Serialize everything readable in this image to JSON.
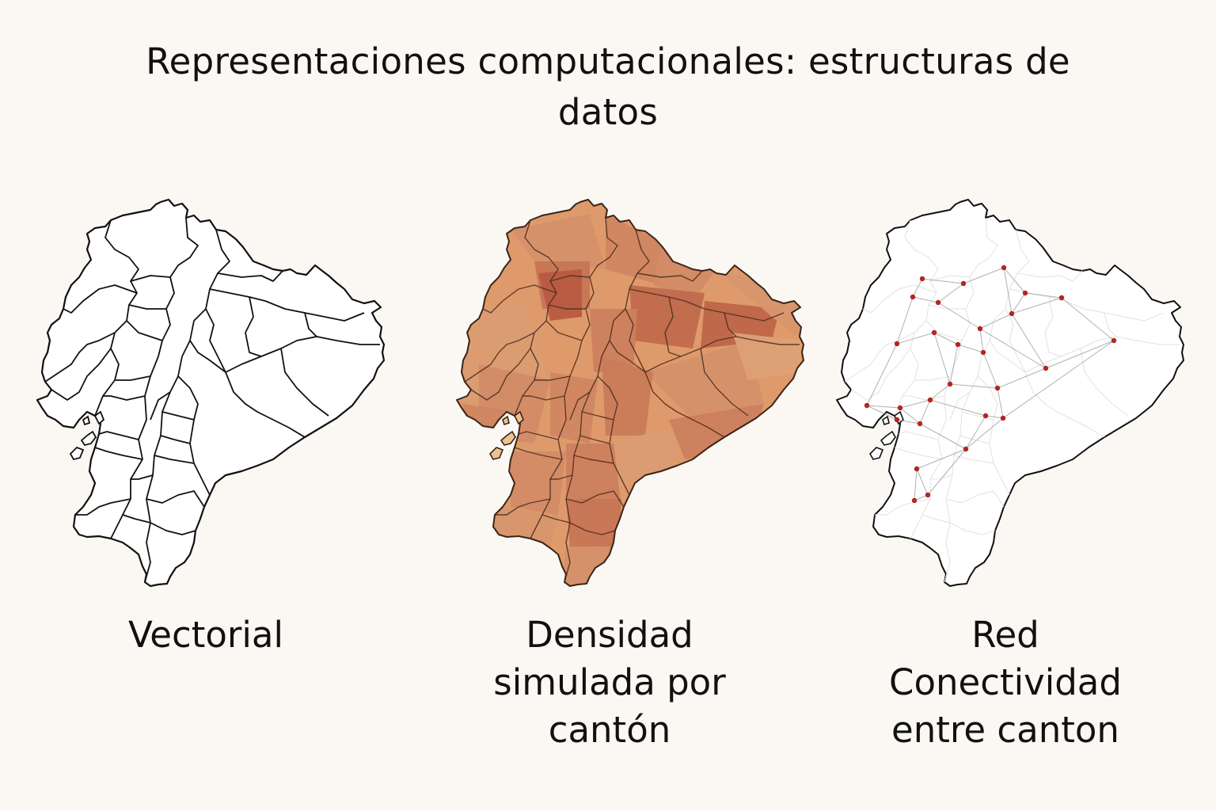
{
  "title": {
    "line1": "Representaciones computacionales: estructuras de",
    "line2": "datos"
  },
  "panels": [
    {
      "id": "vector",
      "caption": [
        "Vectorial"
      ]
    },
    {
      "id": "density",
      "caption": [
        "Densidad",
        "simulada por",
        "cantón"
      ]
    },
    {
      "id": "network",
      "caption": [
        "Red",
        "Conectividad",
        "entre canton"
      ]
    }
  ],
  "colors": {
    "background": "#fbf8f3",
    "outline": "#111111",
    "density_light": "#eec28f",
    "density_mid": "#df9a6b",
    "density_dark": "#b5543d",
    "node": "#b3261e",
    "edge": "#9e9e9e"
  },
  "density": {
    "levels": [
      0.35,
      0.45,
      0.55,
      0.7,
      0.95,
      0.5,
      0.8,
      0.85,
      0.4,
      0.6,
      0.45,
      0.65,
      0.55,
      0.5,
      0.35,
      0.6,
      0.5,
      0.7,
      0.4,
      0.45,
      0.6,
      0.55,
      0.3
    ]
  },
  "network": {
    "nodes_count": 28
  }
}
